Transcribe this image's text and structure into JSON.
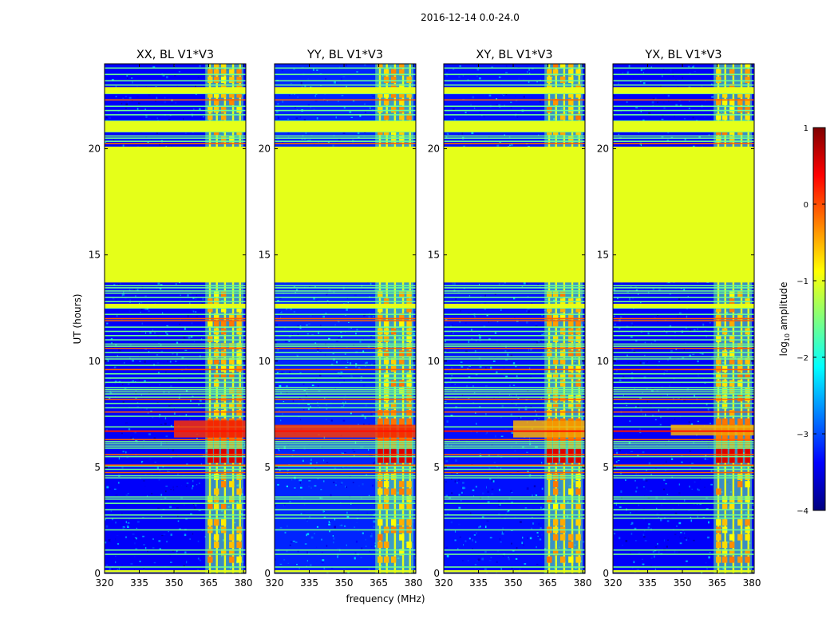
{
  "suptitle": "2016-12-14 0.0-24.0",
  "chart_data": {
    "type": "heatmap",
    "title": "2016-12-14 0.0-24.0",
    "xlabel": "frequency (MHz)",
    "ylabel": "UT (hours)",
    "xlim": [
      320,
      381
    ],
    "ylim": [
      0,
      24
    ],
    "x_ticks": [
      320,
      335,
      350,
      365,
      380
    ],
    "y_ticks": [
      0,
      5,
      10,
      15,
      20
    ],
    "colorbar": {
      "label": "log10 amplitude",
      "label_prefix": "log",
      "label_sub": "10",
      "label_suffix": " amplitude",
      "range": [
        -4,
        1
      ],
      "ticks": [
        -4,
        -3,
        -2,
        -1,
        0,
        1
      ],
      "tick_labels": [
        "−4",
        "−3",
        "−2",
        "−1",
        "0",
        "1"
      ]
    },
    "colormap": [
      "#00007f",
      "#0000ff",
      "#007fff",
      "#00ffff",
      "#7fff7f",
      "#ffff00",
      "#ff7f00",
      "#ff0000",
      "#7f0000"
    ],
    "panels": [
      {
        "title": "XX, BL V1*V3",
        "flare_hours": [
          6.4,
          7.2
        ],
        "flare_start_mhz": 350,
        "flare_level": 0.15,
        "lowband_level": -3.4
      },
      {
        "title": "YY, BL V1*V3",
        "flare_hours": [
          6.4,
          7.0
        ],
        "flare_start_mhz": 320,
        "flare_level": 0.1,
        "lowband_level": -3.2
      },
      {
        "title": "XY, BL V1*V3",
        "flare_hours": [
          6.4,
          7.2
        ],
        "flare_start_mhz": 350,
        "flare_level": -0.5,
        "lowband_level": -3.3
      },
      {
        "title": "YX, BL V1*V3",
        "flare_hours": [
          6.5,
          7.0
        ],
        "flare_start_mhz": 345,
        "flare_level": -0.5,
        "lowband_level": -3.4
      }
    ],
    "flagged_hours_uniform": [
      13.7,
      20.1
    ],
    "flagged_level": -1.0,
    "interference_band_mhz": [
      363.5,
      380
    ],
    "interference_level": -1.2,
    "strong_band_hours": [
      5.2,
      7.3
    ],
    "strong_band_level": 0.2
  }
}
